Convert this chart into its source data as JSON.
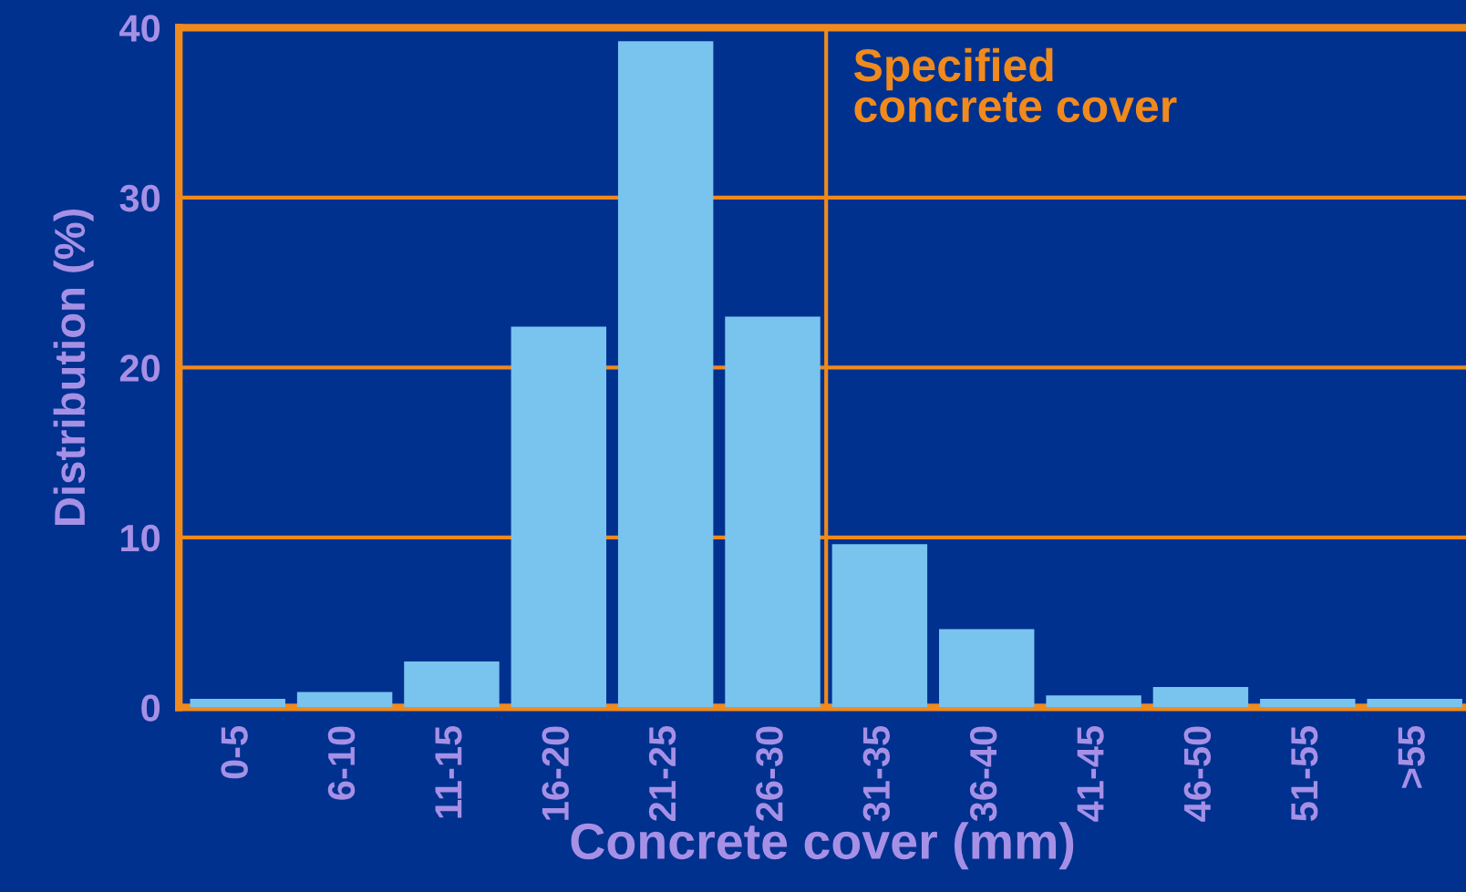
{
  "chart_data": {
    "type": "bar",
    "xlabel": "Concrete cover (mm)",
    "ylabel": "Distribution (%)",
    "categories": [
      "0-5",
      "6-10",
      "11-15",
      "16-20",
      "21-25",
      "26-30",
      "31-35",
      "36-40",
      "41-45",
      "46-50",
      "51-55",
      ">55"
    ],
    "values": [
      0.5,
      0.9,
      2.7,
      22.4,
      39.2,
      23.0,
      9.6,
      4.6,
      0.7,
      1.2,
      0.5,
      0.5
    ],
    "color": "#78c4ee",
    "ylim": [
      0,
      40
    ],
    "yticks": [
      0,
      10,
      20,
      30,
      40
    ],
    "grid": "y",
    "annotations": [
      "Specified\nconcrete cover"
    ]
  }
}
